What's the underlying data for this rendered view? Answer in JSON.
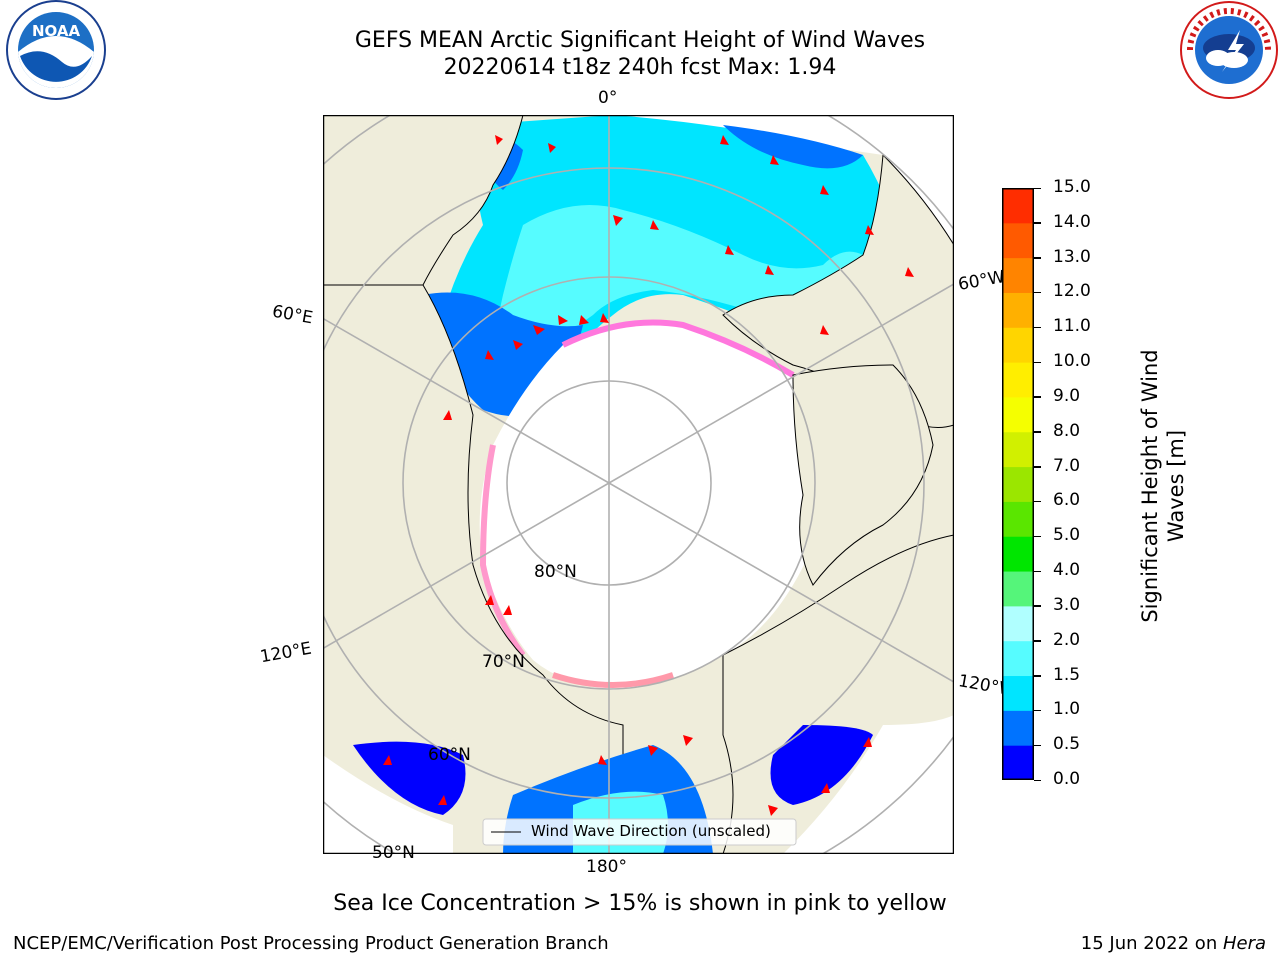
{
  "title": {
    "line1": "GEFS MEAN Arctic Significant Height of Wind Waves",
    "line2": "20220614 t18z 240h fcst   Max: 1.94"
  },
  "logos": {
    "left": {
      "text": "NOAA",
      "ring_text": "NATIONAL OCEANIC AND ATMOSPHERIC ADMINISTRATION · U.S. DEPARTMENT OF COMMERCE"
    },
    "right": {
      "ring_text": "NATIONAL WEATHER SERVICE"
    }
  },
  "map": {
    "projection": "north-polar-stereographic",
    "colors": {
      "land": "#efeddb",
      "ice_free": "#ffffff",
      "grid": "#b0b0b0",
      "coast": "#000000",
      "arrow": "#ff0000"
    },
    "longitude_labels": [
      "0°",
      "60°E",
      "120°E",
      "180°",
      "120°W",
      "60°W"
    ],
    "latitude_labels": [
      "80°N",
      "70°N",
      "60°N",
      "50°N"
    ],
    "legend": {
      "label": "Wind Wave Direction (unscaled)"
    }
  },
  "colorbar": {
    "label": "Significant Height of Wind Waves [m]",
    "label_line1": "Significant Height of Wind",
    "label_line2": "Waves [m]",
    "ticks": [
      "0.0",
      "0.5",
      "1.0",
      "1.5",
      "2.0",
      "3.0",
      "4.0",
      "5.0",
      "6.0",
      "7.0",
      "8.0",
      "9.0",
      "10.0",
      "11.0",
      "12.0",
      "13.0",
      "14.0",
      "15.0"
    ],
    "colors": [
      "#0000ff",
      "#0073ff",
      "#00e5ff",
      "#56fcff",
      "#b0ffff",
      "#55f57a",
      "#00e600",
      "#5ae600",
      "#9be600",
      "#d1f000",
      "#f5ff00",
      "#ffee00",
      "#ffd500",
      "#ffb000",
      "#ff8400",
      "#ff5a00",
      "#ff2d00"
    ]
  },
  "caption": "Sea Ice Concentration > 15% is shown in pink to yellow",
  "footer": {
    "left": "NCEP/EMC/Verification Post Processing Product Generation Branch",
    "right_prefix": "15 Jun 2022 on ",
    "right_italic": "Hera"
  }
}
